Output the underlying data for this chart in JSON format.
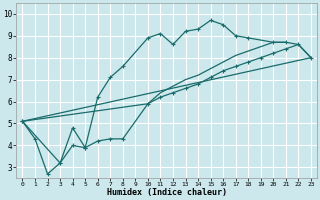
{
  "title": "",
  "xlabel": "Humidex (Indice chaleur)",
  "ylabel": "",
  "background_color": "#cce8ec",
  "grid_color": "#ffffff",
  "line_color": "#1a6b6b",
  "marker_color": "#1a6b6b",
  "xlim": [
    -0.5,
    23.5
  ],
  "ylim": [
    2.5,
    10.5
  ],
  "xticks": [
    0,
    1,
    2,
    3,
    4,
    5,
    6,
    7,
    8,
    9,
    10,
    11,
    12,
    13,
    14,
    15,
    16,
    17,
    18,
    19,
    20,
    21,
    22,
    23
  ],
  "yticks": [
    3,
    4,
    5,
    6,
    7,
    8,
    9,
    10
  ],
  "series1_x": [
    0,
    1,
    2,
    3,
    4,
    5,
    6,
    7,
    8,
    10,
    11,
    12,
    13,
    14,
    15,
    16,
    17,
    18,
    20,
    21
  ],
  "series1_y": [
    5.1,
    4.3,
    2.7,
    3.2,
    4.0,
    3.9,
    6.2,
    7.1,
    7.6,
    8.9,
    9.1,
    8.6,
    9.2,
    9.3,
    9.7,
    9.5,
    9.0,
    8.9,
    8.7,
    8.7
  ],
  "series2_x": [
    0,
    3,
    4,
    5,
    6,
    7,
    8,
    10,
    11,
    12,
    13,
    14,
    15,
    16,
    17,
    18,
    19,
    20,
    21,
    22,
    23
  ],
  "series2_y": [
    5.1,
    3.2,
    4.8,
    3.9,
    4.2,
    4.3,
    4.3,
    5.9,
    6.2,
    6.4,
    6.6,
    6.8,
    7.1,
    7.4,
    7.6,
    7.8,
    8.0,
    8.2,
    8.4,
    8.6,
    8.0
  ],
  "series3_x": [
    0,
    23
  ],
  "series3_y": [
    5.1,
    8.0
  ],
  "series4_x": [
    0,
    10,
    11,
    12,
    13,
    14,
    15,
    16,
    17,
    18,
    19,
    20,
    21,
    22,
    23
  ],
  "series4_y": [
    5.1,
    5.9,
    6.4,
    6.7,
    7.0,
    7.2,
    7.5,
    7.8,
    8.1,
    8.3,
    8.5,
    8.7,
    8.7,
    8.6,
    8.0
  ]
}
